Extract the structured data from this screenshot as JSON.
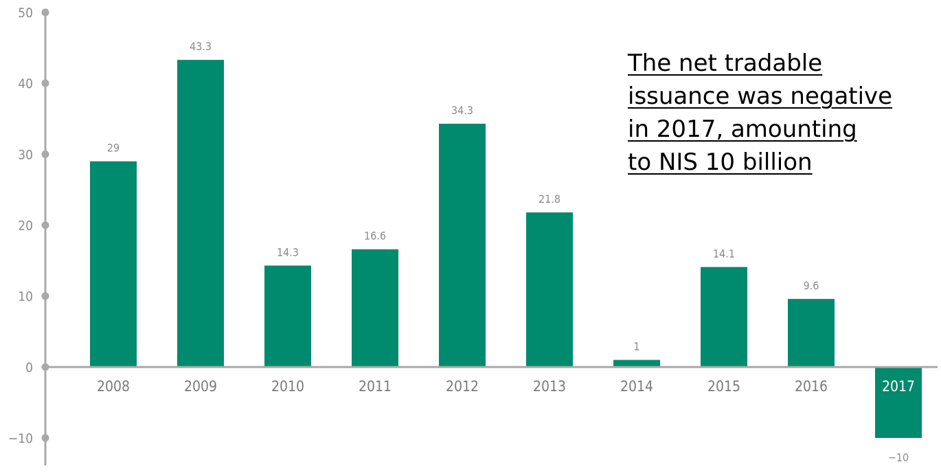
{
  "chart_data": {
    "type": "bar",
    "categories": [
      "2008",
      "2009",
      "2010",
      "2011",
      "2012",
      "2013",
      "2014",
      "2015",
      "2016",
      "2017"
    ],
    "values": [
      29,
      43.3,
      14.3,
      16.6,
      34.3,
      21.8,
      1,
      14.1,
      9.6,
      -10
    ],
    "value_labels": [
      "29",
      "43.3",
      "14.3",
      "16.6",
      "34.3",
      "21.8",
      "1",
      "14.1",
      "9.6",
      "−10"
    ],
    "title": "",
    "xlabel": "",
    "ylabel": "",
    "ylim": [
      -10,
      50
    ],
    "yticks": [
      -10,
      0,
      10,
      20,
      30,
      40,
      50
    ],
    "ytick_labels": [
      "−10",
      "0",
      "10",
      "20",
      "30",
      "40",
      "50"
    ],
    "grid": false,
    "legend": "none",
    "annotation": "The net tradable \nissuance was negative\nin 2017, amounting \nto NIS 10 billion",
    "colors": {
      "bar": "#008a6e",
      "axis": "#a9a9a9",
      "label": "#8a8a8a"
    }
  }
}
